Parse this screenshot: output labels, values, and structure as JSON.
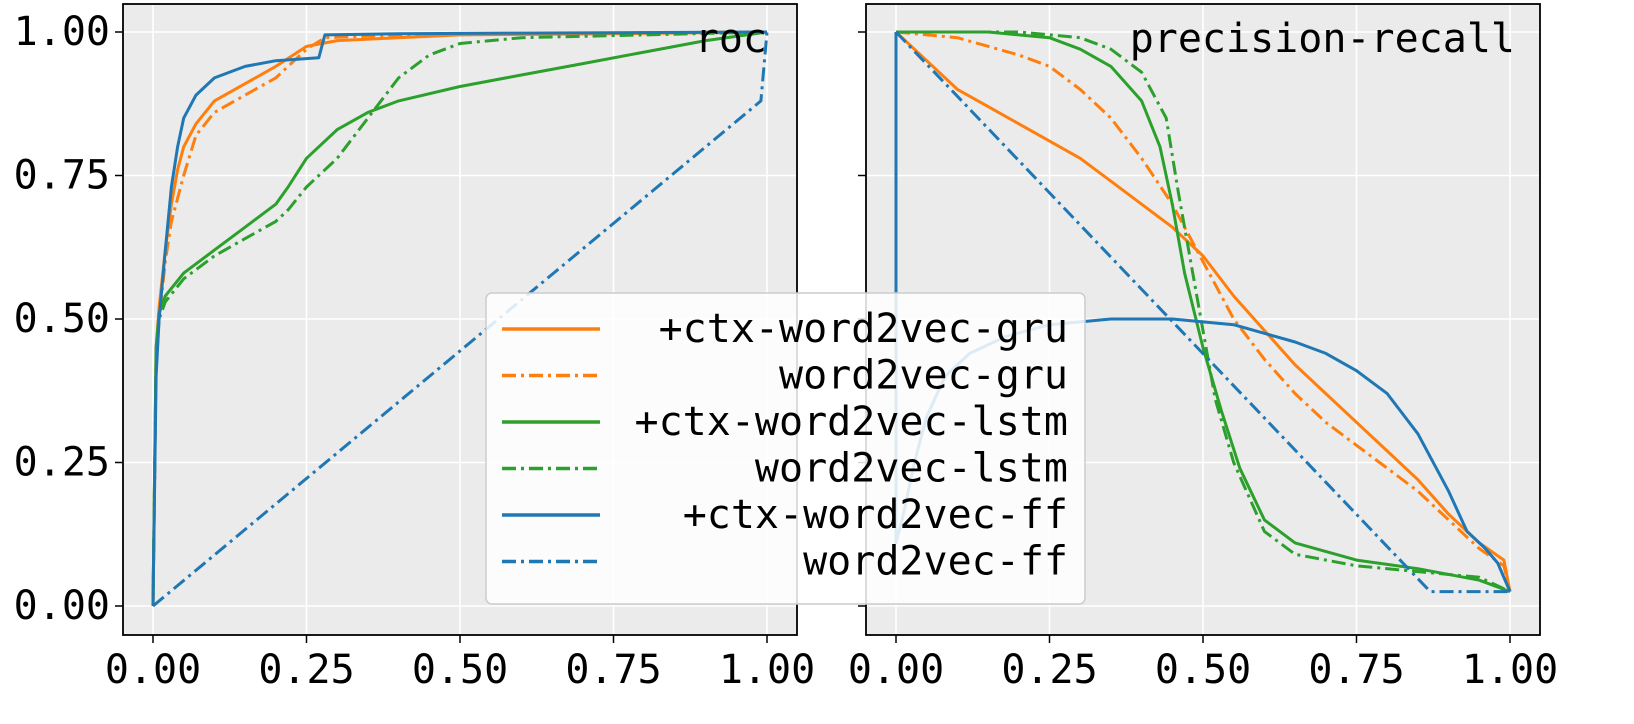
{
  "chart_data": [
    {
      "type": "line",
      "title": "roc",
      "xlim": [
        0,
        1
      ],
      "ylim": [
        0,
        1
      ],
      "xticks": [
        "0.00",
        "0.25",
        "0.50",
        "0.75",
        "1.00"
      ],
      "yticks": [
        "0.00",
        "0.25",
        "0.50",
        "0.75",
        "1.00"
      ],
      "grid": true,
      "series": [
        {
          "name": "+ctx-word2vec-gru",
          "color": "#ff7f0e",
          "style": "solid",
          "points": [
            [
              0,
              0
            ],
            [
              0.005,
              0.45
            ],
            [
              0.01,
              0.52
            ],
            [
              0.02,
              0.62
            ],
            [
              0.03,
              0.7
            ],
            [
              0.04,
              0.76
            ],
            [
              0.05,
              0.8
            ],
            [
              0.07,
              0.84
            ],
            [
              0.1,
              0.88
            ],
            [
              0.15,
              0.91
            ],
            [
              0.2,
              0.94
            ],
            [
              0.25,
              0.975
            ],
            [
              0.3,
              0.985
            ],
            [
              0.4,
              0.99
            ],
            [
              0.5,
              0.995
            ],
            [
              0.75,
              0.997
            ],
            [
              1.0,
              1.0
            ]
          ]
        },
        {
          "name": "word2vec-gru",
          "color": "#ff7f0e",
          "style": "dashdot",
          "points": [
            [
              0,
              0
            ],
            [
              0.005,
              0.42
            ],
            [
              0.01,
              0.5
            ],
            [
              0.02,
              0.6
            ],
            [
              0.03,
              0.67
            ],
            [
              0.05,
              0.75
            ],
            [
              0.07,
              0.82
            ],
            [
              0.1,
              0.86
            ],
            [
              0.15,
              0.89
            ],
            [
              0.2,
              0.92
            ],
            [
              0.25,
              0.97
            ],
            [
              0.28,
              0.99
            ],
            [
              0.4,
              0.995
            ],
            [
              0.6,
              0.997
            ],
            [
              1.0,
              1.0
            ]
          ]
        },
        {
          "name": "+ctx-word2vec-lstm",
          "color": "#2ca02c",
          "style": "solid",
          "points": [
            [
              0,
              0
            ],
            [
              0.005,
              0.45
            ],
            [
              0.01,
              0.51
            ],
            [
              0.02,
              0.54
            ],
            [
              0.05,
              0.58
            ],
            [
              0.1,
              0.62
            ],
            [
              0.15,
              0.66
            ],
            [
              0.2,
              0.7
            ],
            [
              0.22,
              0.73
            ],
            [
              0.25,
              0.78
            ],
            [
              0.3,
              0.83
            ],
            [
              0.35,
              0.86
            ],
            [
              0.4,
              0.88
            ],
            [
              0.5,
              0.905
            ],
            [
              0.6,
              0.925
            ],
            [
              0.7,
              0.945
            ],
            [
              0.8,
              0.965
            ],
            [
              0.9,
              0.985
            ],
            [
              1.0,
              1.0
            ]
          ]
        },
        {
          "name": "word2vec-lstm",
          "color": "#2ca02c",
          "style": "dashdot",
          "points": [
            [
              0,
              0
            ],
            [
              0.005,
              0.44
            ],
            [
              0.01,
              0.5
            ],
            [
              0.02,
              0.53
            ],
            [
              0.05,
              0.57
            ],
            [
              0.1,
              0.61
            ],
            [
              0.15,
              0.64
            ],
            [
              0.2,
              0.67
            ],
            [
              0.22,
              0.69
            ],
            [
              0.25,
              0.73
            ],
            [
              0.3,
              0.78
            ],
            [
              0.35,
              0.85
            ],
            [
              0.4,
              0.92
            ],
            [
              0.45,
              0.96
            ],
            [
              0.5,
              0.98
            ],
            [
              0.6,
              0.99
            ],
            [
              0.8,
              0.995
            ],
            [
              1.0,
              1.0
            ]
          ]
        },
        {
          "name": "+ctx-word2vec-ff",
          "color": "#1f77b4",
          "style": "solid",
          "points": [
            [
              0,
              0
            ],
            [
              0.005,
              0.4
            ],
            [
              0.01,
              0.5
            ],
            [
              0.02,
              0.62
            ],
            [
              0.03,
              0.73
            ],
            [
              0.04,
              0.8
            ],
            [
              0.05,
              0.85
            ],
            [
              0.07,
              0.89
            ],
            [
              0.1,
              0.92
            ],
            [
              0.15,
              0.94
            ],
            [
              0.2,
              0.95
            ],
            [
              0.27,
              0.955
            ],
            [
              0.28,
              0.995
            ],
            [
              0.4,
              0.997
            ],
            [
              0.6,
              0.998
            ],
            [
              1.0,
              1.0
            ]
          ]
        },
        {
          "name": "word2vec-ff",
          "color": "#1f77b4",
          "style": "dashdot",
          "points": [
            [
              0,
              0
            ],
            [
              0.99,
              0.88
            ],
            [
              1.0,
              1.0
            ]
          ]
        }
      ]
    },
    {
      "type": "line",
      "title": "precision-recall",
      "xlim": [
        0,
        1
      ],
      "ylim": [
        0,
        1
      ],
      "xticks": [
        "0.00",
        "0.25",
        "0.50",
        "0.75",
        "1.00"
      ],
      "yticks": [
        "0.00",
        "0.25",
        "0.50",
        "0.75",
        "1.00"
      ],
      "grid": true,
      "series": [
        {
          "name": "+ctx-word2vec-gru",
          "color": "#ff7f0e",
          "style": "solid",
          "points": [
            [
              0,
              1.0
            ],
            [
              0.05,
              0.95
            ],
            [
              0.1,
              0.9
            ],
            [
              0.15,
              0.87
            ],
            [
              0.2,
              0.84
            ],
            [
              0.25,
              0.81
            ],
            [
              0.3,
              0.78
            ],
            [
              0.35,
              0.74
            ],
            [
              0.4,
              0.7
            ],
            [
              0.45,
              0.66
            ],
            [
              0.5,
              0.61
            ],
            [
              0.55,
              0.54
            ],
            [
              0.6,
              0.48
            ],
            [
              0.65,
              0.42
            ],
            [
              0.7,
              0.37
            ],
            [
              0.75,
              0.32
            ],
            [
              0.8,
              0.27
            ],
            [
              0.85,
              0.22
            ],
            [
              0.9,
              0.16
            ],
            [
              0.95,
              0.11
            ],
            [
              0.99,
              0.08
            ],
            [
              1.0,
              0.025
            ]
          ]
        },
        {
          "name": "word2vec-gru",
          "color": "#ff7f0e",
          "style": "dashdot",
          "points": [
            [
              0,
              1.0
            ],
            [
              0.1,
              0.99
            ],
            [
              0.2,
              0.96
            ],
            [
              0.25,
              0.94
            ],
            [
              0.3,
              0.9
            ],
            [
              0.35,
              0.85
            ],
            [
              0.4,
              0.78
            ],
            [
              0.45,
              0.7
            ],
            [
              0.5,
              0.6
            ],
            [
              0.55,
              0.5
            ],
            [
              0.6,
              0.43
            ],
            [
              0.65,
              0.37
            ],
            [
              0.7,
              0.32
            ],
            [
              0.75,
              0.28
            ],
            [
              0.8,
              0.24
            ],
            [
              0.85,
              0.2
            ],
            [
              0.9,
              0.15
            ],
            [
              0.95,
              0.1
            ],
            [
              0.99,
              0.07
            ],
            [
              1.0,
              0.025
            ]
          ]
        },
        {
          "name": "+ctx-word2vec-lstm",
          "color": "#2ca02c",
          "style": "solid",
          "points": [
            [
              0,
              1.0
            ],
            [
              0.15,
              1.0
            ],
            [
              0.25,
              0.99
            ],
            [
              0.3,
              0.97
            ],
            [
              0.35,
              0.94
            ],
            [
              0.4,
              0.88
            ],
            [
              0.43,
              0.8
            ],
            [
              0.45,
              0.7
            ],
            [
              0.47,
              0.58
            ],
            [
              0.5,
              0.45
            ],
            [
              0.53,
              0.34
            ],
            [
              0.56,
              0.24
            ],
            [
              0.6,
              0.15
            ],
            [
              0.65,
              0.11
            ],
            [
              0.75,
              0.08
            ],
            [
              0.85,
              0.065
            ],
            [
              0.95,
              0.045
            ],
            [
              1.0,
              0.025
            ]
          ]
        },
        {
          "name": "word2vec-lstm",
          "color": "#2ca02c",
          "style": "dashdot",
          "points": [
            [
              0,
              1.0
            ],
            [
              0.2,
              1.0
            ],
            [
              0.3,
              0.99
            ],
            [
              0.35,
              0.97
            ],
            [
              0.4,
              0.93
            ],
            [
              0.44,
              0.85
            ],
            [
              0.46,
              0.72
            ],
            [
              0.48,
              0.6
            ],
            [
              0.5,
              0.48
            ],
            [
              0.52,
              0.36
            ],
            [
              0.55,
              0.25
            ],
            [
              0.6,
              0.13
            ],
            [
              0.65,
              0.09
            ],
            [
              0.75,
              0.07
            ],
            [
              0.85,
              0.06
            ],
            [
              0.95,
              0.05
            ],
            [
              1.0,
              0.025
            ]
          ]
        },
        {
          "name": "+ctx-word2vec-ff",
          "color": "#1f77b4",
          "style": "solid",
          "points": [
            [
              0,
              1.0
            ],
            [
              0,
              0.11
            ],
            [
              0.01,
              0.15
            ],
            [
              0.03,
              0.25
            ],
            [
              0.05,
              0.33
            ],
            [
              0.08,
              0.4
            ],
            [
              0.12,
              0.44
            ],
            [
              0.18,
              0.47
            ],
            [
              0.25,
              0.49
            ],
            [
              0.35,
              0.5
            ],
            [
              0.45,
              0.5
            ],
            [
              0.55,
              0.49
            ],
            [
              0.65,
              0.46
            ],
            [
              0.7,
              0.44
            ],
            [
              0.75,
              0.41
            ],
            [
              0.8,
              0.37
            ],
            [
              0.85,
              0.3
            ],
            [
              0.9,
              0.2
            ],
            [
              0.93,
              0.13
            ],
            [
              0.96,
              0.1
            ],
            [
              0.98,
              0.075
            ],
            [
              1.0,
              0.025
            ]
          ]
        },
        {
          "name": "word2vec-ff",
          "color": "#1f77b4",
          "style": "dashdot",
          "points": [
            [
              0,
              1.0
            ],
            [
              0.87,
              0.025
            ],
            [
              1.0,
              0.025
            ]
          ]
        }
      ]
    }
  ],
  "legend": {
    "placement": "lower-center",
    "entries": [
      {
        "label": "+ctx-word2vec-gru",
        "color": "#ff7f0e",
        "style": "solid"
      },
      {
        "label": "word2vec-gru",
        "color": "#ff7f0e",
        "style": "dashdot"
      },
      {
        "label": "+ctx-word2vec-lstm",
        "color": "#2ca02c",
        "style": "solid"
      },
      {
        "label": "word2vec-lstm",
        "color": "#2ca02c",
        "style": "dashdot"
      },
      {
        "label": "+ctx-word2vec-ff",
        "color": "#1f77b4",
        "style": "solid"
      },
      {
        "label": "word2vec-ff",
        "color": "#1f77b4",
        "style": "dashdot"
      }
    ]
  }
}
